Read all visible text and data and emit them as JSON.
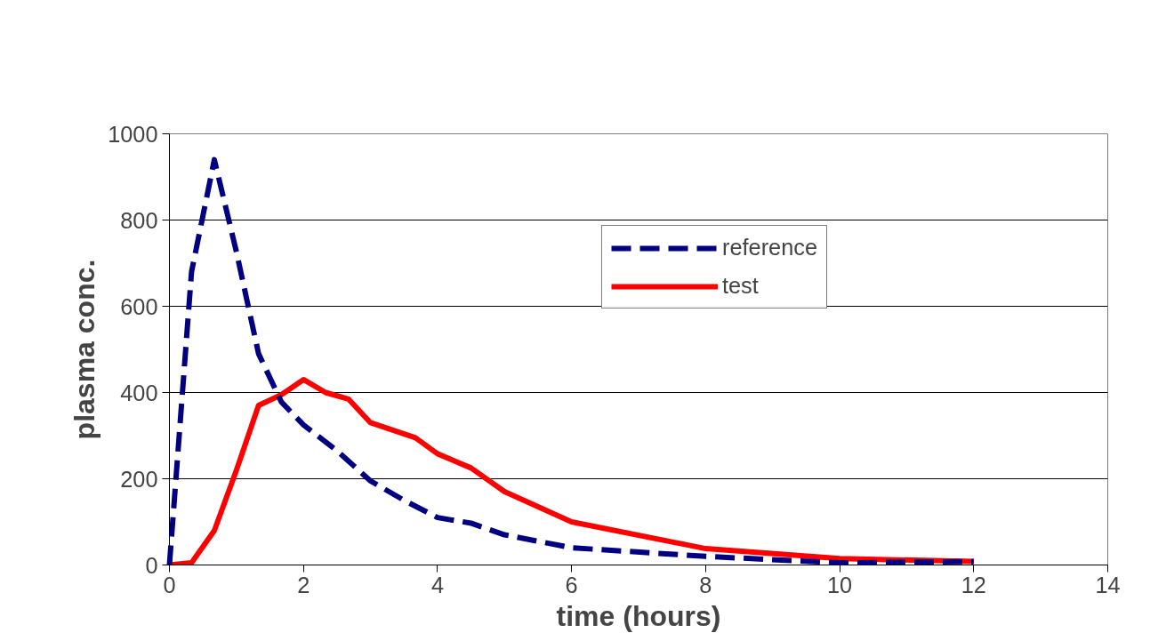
{
  "chart_data": {
    "type": "line",
    "xlabel": "time (hours)",
    "ylabel": "plasma conc.",
    "xlim": [
      0,
      14
    ],
    "xticks": [
      0,
      2,
      4,
      6,
      8,
      10,
      12,
      14
    ],
    "ylim": [
      0,
      1000
    ],
    "yticks": [
      0,
      200,
      400,
      600,
      800,
      1000
    ],
    "grid": "y",
    "legend": "top right",
    "marker": "none",
    "series": [
      {
        "name": "reference",
        "color": "#000080",
        "line_style": "dashed",
        "x": [
          0,
          0.33,
          0.67,
          1,
          1.33,
          1.67,
          2,
          2.5,
          3,
          3.5,
          4,
          4.5,
          5,
          6,
          8,
          10,
          12
        ],
        "values": [
          0,
          680,
          940,
          726,
          490,
          378,
          325,
          265,
          195,
          150,
          110,
          97,
          70,
          40,
          20,
          5,
          8
        ]
      },
      {
        "name": "test",
        "color": "#ff0000",
        "line_style": "solid",
        "x": [
          0,
          0.33,
          0.67,
          1,
          1.33,
          1.67,
          2,
          2.33,
          2.67,
          3,
          3.67,
          4,
          4.5,
          5,
          6,
          8,
          10,
          12
        ],
        "values": [
          0,
          5,
          80,
          220,
          370,
          395,
          430,
          400,
          385,
          330,
          295,
          258,
          225,
          170,
          100,
          38,
          15,
          8
        ]
      }
    ]
  }
}
